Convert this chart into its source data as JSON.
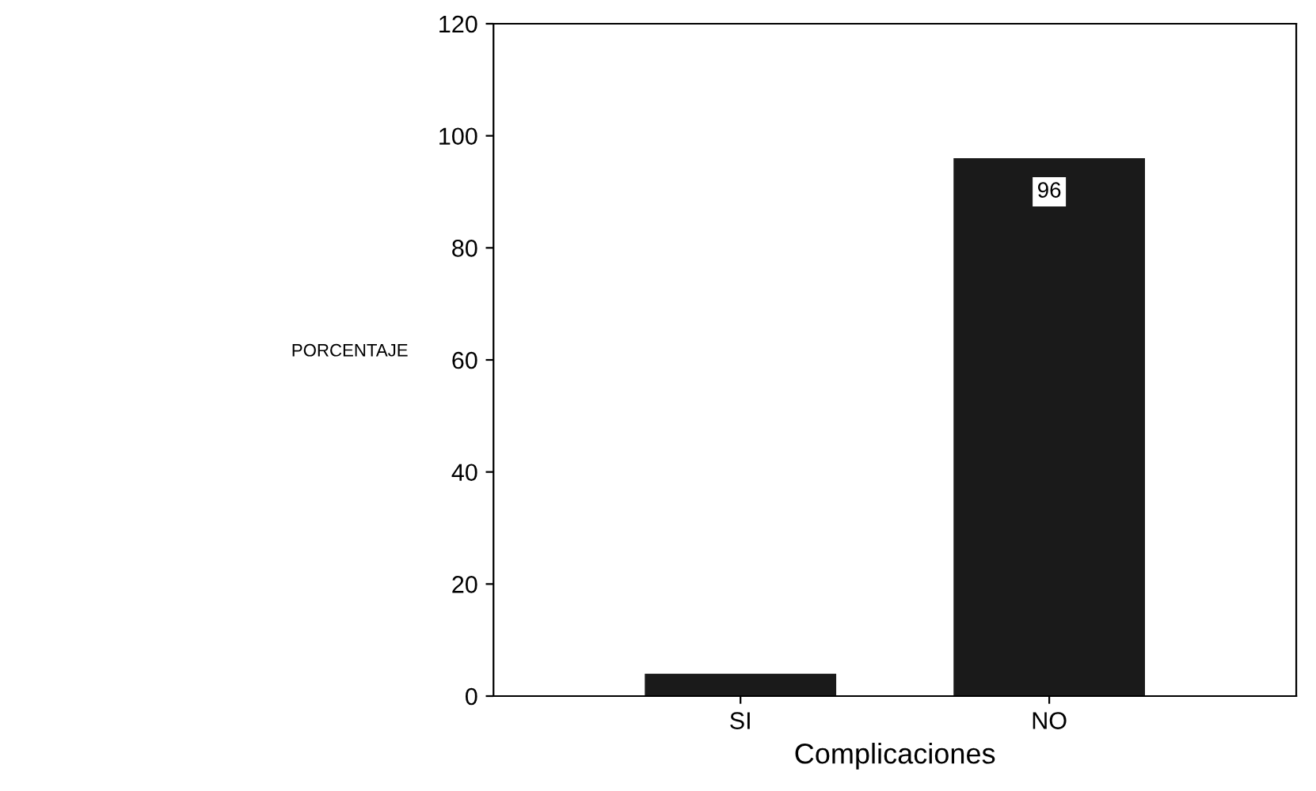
{
  "chart_data": {
    "type": "bar",
    "xlabel": "Complicaciones",
    "ylabel": "PORCENTAJE",
    "categories": [
      "SI",
      "NO"
    ],
    "values": [
      4,
      96
    ],
    "color": "#1a1a1a",
    "value_labels": [
      null,
      "96"
    ],
    "ylim": [
      0,
      120
    ],
    "yticks": [
      0,
      20,
      40,
      60,
      80,
      100,
      120
    ]
  }
}
